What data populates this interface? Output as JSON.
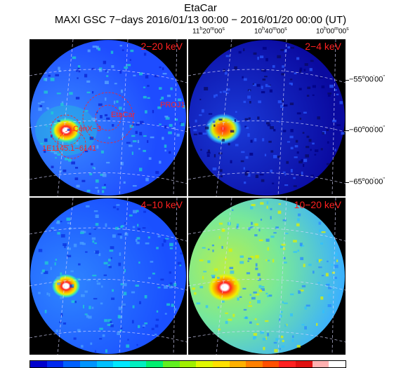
{
  "header": {
    "title": "EtaCar",
    "subtitle": "MAXI GSC 7−days 2016/01/13 00:00 − 2016/01/20 00:00 (UT)"
  },
  "ra_labels": [
    {
      "h": "11",
      "m": "20",
      "s": "00",
      "pos": "left"
    },
    {
      "h": "10",
      "m": "40",
      "s": "00",
      "pos": "mid"
    },
    {
      "h": "10",
      "m": "00",
      "s": "00",
      "pos": "right"
    }
  ],
  "dec_labels": [
    {
      "d": "−55",
      "m": "00",
      "s": "00"
    },
    {
      "d": "−60",
      "m": "00",
      "s": "00"
    },
    {
      "d": "−65",
      "m": "00",
      "s": "00"
    }
  ],
  "panels": [
    {
      "id": "p1",
      "label": "2−20 keV",
      "bg": "#1e4cff",
      "field": "#3a8cff",
      "glow": "#1fd0d0"
    },
    {
      "id": "p2",
      "label": "2−4 keV",
      "bg": "#0a0aa0",
      "field": "#1a3ad8",
      "glow": "#1e6cff"
    },
    {
      "id": "p3",
      "label": "4−10 keV",
      "bg": "#1a50ff",
      "field": "#2f86ff",
      "glow": "#1fd0d0"
    },
    {
      "id": "p4",
      "label": "10−20 keV",
      "bg": "#4cd0e8",
      "field": "#78e89a",
      "glow": "#1fb0ff"
    }
  ],
  "sources": {
    "etacar": "EtaCar",
    "cenx3": "CenX−3",
    "e1145": "1E1145.1−6141",
    "proj1": "PROJ1"
  },
  "colorbar": [
    "#0000cd",
    "#0028f0",
    "#0060ff",
    "#0094ff",
    "#00c0ff",
    "#00e8ff",
    "#00f0c0",
    "#00f070",
    "#60f020",
    "#a0f000",
    "#e0f800",
    "#ffe000",
    "#ffb000",
    "#ff8000",
    "#ff5000",
    "#ff2020",
    "#e01010",
    "#ffb0b0",
    "#ffffff"
  ]
}
